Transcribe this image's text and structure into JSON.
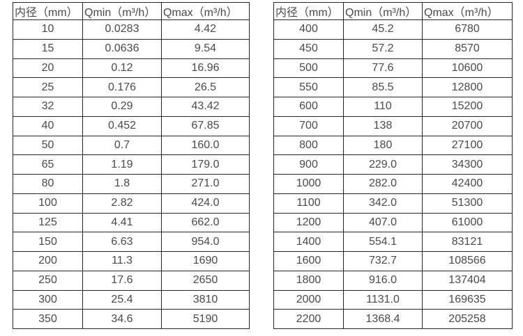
{
  "colors": {
    "background": "#ffffff",
    "border": "#262626",
    "text": "#4a4a4a"
  },
  "tables": [
    {
      "name": "flow-table-small-diameters",
      "headers": [
        "内径（mm）",
        "Qmin（m³/h）",
        "Qmax（m³/h）"
      ],
      "rows": [
        [
          "10",
          "0.0283",
          "4.42"
        ],
        [
          "15",
          "0.0636",
          "9.54"
        ],
        [
          "20",
          "0.12",
          "16.96"
        ],
        [
          "25",
          "0.176",
          "26.5"
        ],
        [
          "32",
          "0.29",
          "43.42"
        ],
        [
          "40",
          "0.452",
          "67.85"
        ],
        [
          "50",
          "0.7",
          "160.0"
        ],
        [
          "65",
          "1.19",
          "179.0"
        ],
        [
          "80",
          "1.8",
          "271.0"
        ],
        [
          "100",
          "2.82",
          "424.0"
        ],
        [
          "125",
          "4.41",
          "662.0"
        ],
        [
          "150",
          "6.63",
          "954.0"
        ],
        [
          "200",
          "11.3",
          "1690"
        ],
        [
          "250",
          "17.6",
          "2650"
        ],
        [
          "300",
          "25.4",
          "3810"
        ],
        [
          "350",
          "34.6",
          "5190"
        ]
      ]
    },
    {
      "name": "flow-table-large-diameters",
      "headers": [
        "内径（mm）",
        "Qmin（m³/h）",
        "Qmax（m³/h）"
      ],
      "rows": [
        [
          "400",
          "45.2",
          "6780"
        ],
        [
          "450",
          "57.2",
          "8570"
        ],
        [
          "500",
          "77.6",
          "10600"
        ],
        [
          "550",
          "85.5",
          "12800"
        ],
        [
          "600",
          "110",
          "15200"
        ],
        [
          "700",
          "138",
          "20700"
        ],
        [
          "800",
          "180",
          "27100"
        ],
        [
          "900",
          "229.0",
          "34300"
        ],
        [
          "1000",
          "282.0",
          "42400"
        ],
        [
          "1100",
          "342.0",
          "51300"
        ],
        [
          "1200",
          "407.0",
          "61000"
        ],
        [
          "1400",
          "554.1",
          "83121"
        ],
        [
          "1600",
          "732.7",
          "108566"
        ],
        [
          "1800",
          "916.0",
          "137404"
        ],
        [
          "2000",
          "1131.0",
          "169635"
        ],
        [
          "2200",
          "1368.4",
          "205258"
        ]
      ]
    }
  ]
}
